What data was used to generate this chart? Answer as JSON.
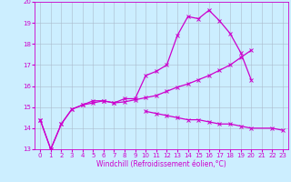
{
  "title": "",
  "xlabel": "Windchill (Refroidissement éolien,°C)",
  "background_color": "#cceeff",
  "line_color": "#cc00cc",
  "grid_color": "#aabbcc",
  "x": [
    0,
    1,
    2,
    3,
    4,
    5,
    6,
    7,
    8,
    9,
    10,
    11,
    12,
    13,
    14,
    15,
    16,
    17,
    18,
    19,
    20,
    21,
    22,
    23
  ],
  "line1": [
    14.4,
    13.0,
    14.2,
    14.9,
    15.1,
    15.3,
    15.3,
    15.2,
    15.4,
    15.4,
    16.5,
    16.7,
    17.0,
    18.4,
    19.3,
    19.2,
    19.6,
    19.1,
    18.5,
    17.6,
    16.3,
    null,
    null,
    null
  ],
  "line2": [
    14.4,
    13.0,
    14.2,
    14.9,
    15.1,
    15.2,
    15.3,
    15.2,
    15.25,
    15.35,
    15.45,
    15.55,
    15.75,
    15.95,
    16.1,
    16.3,
    16.5,
    16.75,
    17.0,
    17.35,
    17.7,
    null,
    null,
    null
  ],
  "line3": [
    null,
    null,
    null,
    null,
    null,
    null,
    null,
    null,
    null,
    null,
    14.8,
    14.7,
    14.6,
    14.5,
    14.4,
    14.4,
    14.3,
    14.2,
    14.2,
    14.1,
    14.0,
    null,
    14.0,
    13.9
  ],
  "ylim": [
    13,
    20
  ],
  "xlim": [
    -0.5,
    23.5
  ],
  "yticks": [
    13,
    14,
    15,
    16,
    17,
    18,
    19,
    20
  ],
  "xticks": [
    0,
    1,
    2,
    3,
    4,
    5,
    6,
    7,
    8,
    9,
    10,
    11,
    12,
    13,
    14,
    15,
    16,
    17,
    18,
    19,
    20,
    21,
    22,
    23
  ],
  "xlabel_fontsize": 5.5,
  "tick_fontsize": 5,
  "linewidth": 0.9,
  "markersize": 2.5
}
